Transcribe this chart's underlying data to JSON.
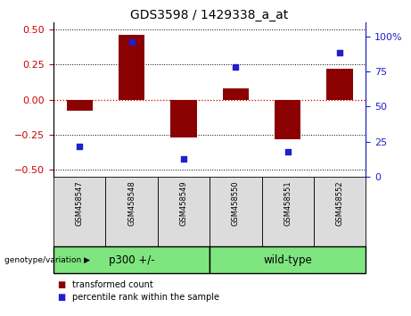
{
  "title": "GDS3598 / 1429338_a_at",
  "samples": [
    "GSM458547",
    "GSM458548",
    "GSM458549",
    "GSM458550",
    "GSM458551",
    "GSM458552"
  ],
  "bar_values": [
    -0.08,
    0.46,
    -0.27,
    0.08,
    -0.28,
    0.22
  ],
  "percentile_values": [
    22,
    96,
    13,
    78,
    18,
    88
  ],
  "bar_color": "#8B0000",
  "dot_color": "#1F1FCC",
  "ylim_left": [
    -0.55,
    0.55
  ],
  "ylim_right": [
    0,
    110
  ],
  "yticks_left": [
    -0.5,
    -0.25,
    0,
    0.25,
    0.5
  ],
  "yticks_right": [
    0,
    25,
    50,
    75,
    100
  ],
  "groups": [
    {
      "label": "p300 +/-",
      "indices": [
        0,
        1,
        2
      ],
      "color": "#7FE57F"
    },
    {
      "label": "wild-type",
      "indices": [
        3,
        4,
        5
      ],
      "color": "#7FE57F"
    }
  ],
  "group_label": "genotype/variation",
  "legend_bar_label": "transformed count",
  "legend_dot_label": "percentile rank within the sample",
  "hline_color": "#CC0000",
  "grid_color": "black",
  "sample_bg_color": "#DCDCDC",
  "plot_bg": "white"
}
